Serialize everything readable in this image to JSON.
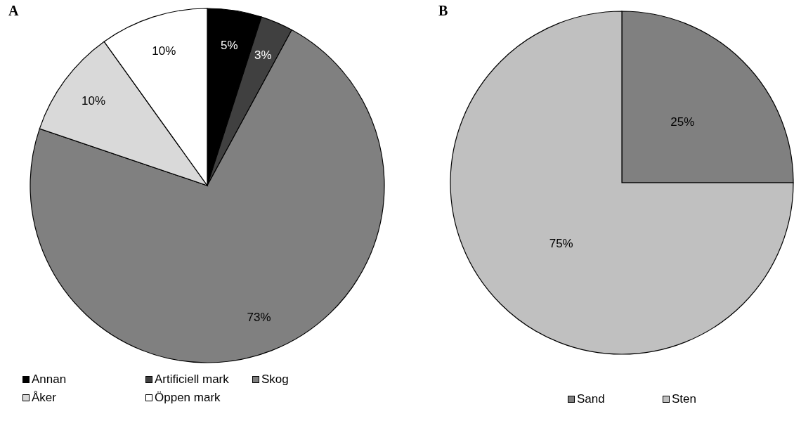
{
  "chart_data": [
    {
      "type": "pie",
      "title": "A",
      "categories": [
        "Annan",
        "Artificiell mark",
        "Skog",
        "Åker",
        "Öppen mark"
      ],
      "values": [
        5,
        3,
        73,
        10,
        10
      ],
      "colors": [
        "#000000",
        "#404040",
        "#808080",
        "#d9d9d9",
        "#ffffff"
      ],
      "value_labels": [
        "5%",
        "3%",
        "73%",
        "10%",
        "10%"
      ],
      "legend": "bottom"
    },
    {
      "type": "pie",
      "title": "B",
      "categories": [
        "Sand",
        "Sten"
      ],
      "values": [
        25,
        75
      ],
      "colors": [
        "#808080",
        "#c0c0c0"
      ],
      "value_labels": [
        "25%",
        "75%"
      ],
      "legend": "bottom"
    }
  ]
}
